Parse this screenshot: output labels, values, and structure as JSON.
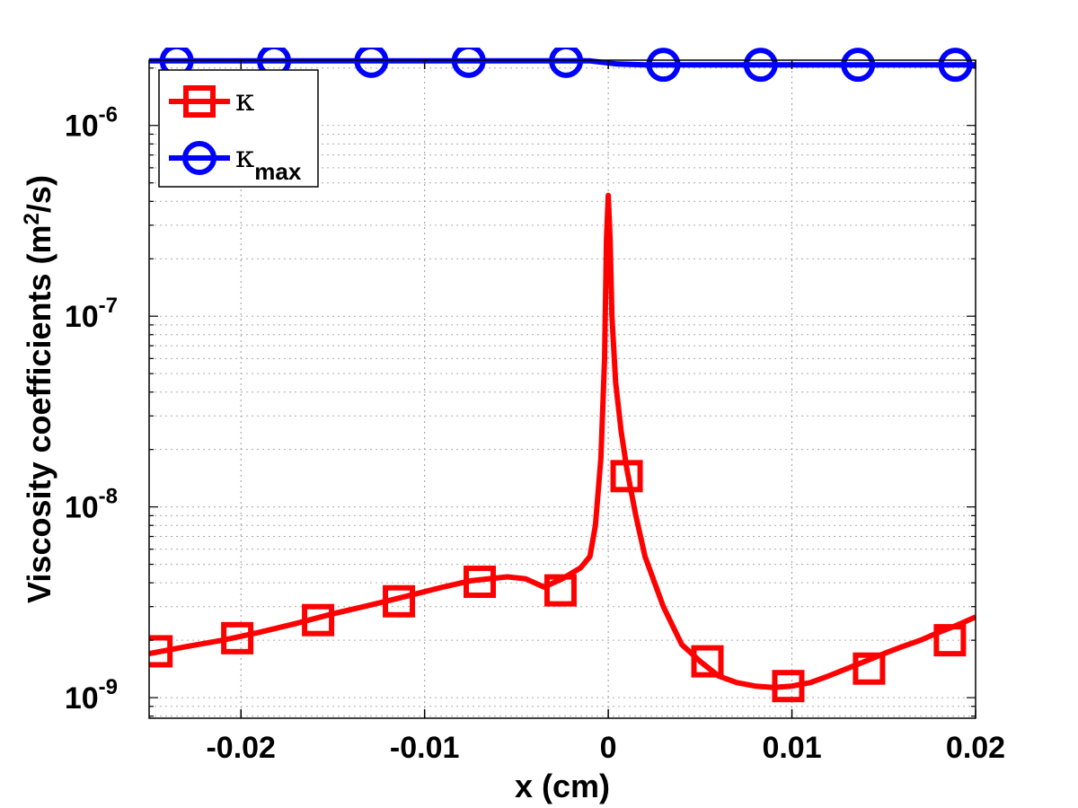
{
  "chart_data": {
    "type": "line",
    "title": "",
    "xlabel": "x (cm)",
    "ylabel": {
      "prefix": "Viscosity coefficients (m",
      "sup": "2",
      "suffix": "/s)"
    },
    "xlim": [
      -0.025,
      0.02
    ],
    "ylim": [
      7.8e-10,
      2.2e-06
    ],
    "yscale": "log",
    "grid": true,
    "legend_position": "top-left",
    "x_ticks": [
      {
        "value": -0.02,
        "label": "-0.02"
      },
      {
        "value": -0.01,
        "label": "-0.01"
      },
      {
        "value": 0,
        "label": "0"
      },
      {
        "value": 0.01,
        "label": "0.01"
      },
      {
        "value": 0.02,
        "label": "0.02"
      }
    ],
    "y_ticks": [
      {
        "value": 1e-09,
        "base": "10",
        "exp": "-9"
      },
      {
        "value": 1e-08,
        "base": "10",
        "exp": "-8"
      },
      {
        "value": 1e-07,
        "base": "10",
        "exp": "-7"
      },
      {
        "value": 1e-06,
        "base": "10",
        "exp": "-6"
      }
    ],
    "series": [
      {
        "name": "κ",
        "name_sub": "",
        "color": "#ff0000",
        "marker": "square",
        "x": [
          -0.025,
          -0.023,
          -0.021,
          -0.019,
          -0.017,
          -0.015,
          -0.013,
          -0.011,
          -0.009,
          -0.0075,
          -0.0055,
          -0.0045,
          -0.0035,
          -0.0025,
          -0.0015,
          -0.001,
          -0.0007,
          -0.0004,
          -0.0002,
          -0.0001,
          0,
          0.0001,
          0.0002,
          0.0004,
          0.0007,
          0.001,
          0.0015,
          0.002,
          0.003,
          0.004,
          0.005,
          0.006,
          0.007,
          0.008,
          0.009,
          0.01,
          0.011,
          0.012,
          0.013,
          0.014,
          0.015,
          0.016,
          0.017,
          0.018,
          0.019,
          0.02
        ],
        "y": [
          1.7e-09,
          1.85e-09,
          2e-09,
          2.2e-09,
          2.45e-09,
          2.75e-09,
          3.05e-09,
          3.4e-09,
          3.8e-09,
          4.1e-09,
          4.3e-09,
          4.2e-09,
          3.8e-09,
          4.2e-09,
          4.8e-09,
          5.5e-09,
          8e-09,
          1.8e-08,
          6e-08,
          2.5e-07,
          4.3e-07,
          2.5e-07,
          1e-07,
          4.5e-08,
          2.5e-08,
          1.6e-08,
          9e-09,
          5.5e-09,
          3e-09,
          1.9e-09,
          1.55e-09,
          1.3e-09,
          1.2e-09,
          1.15e-09,
          1.13e-09,
          1.15e-09,
          1.2e-09,
          1.3e-09,
          1.42e-09,
          1.55e-09,
          1.7e-09,
          1.85e-09,
          2e-09,
          2.2e-09,
          2.4e-09,
          2.65e-09
        ],
        "marker_x": [
          -0.0246,
          -0.0202,
          -0.0158,
          -0.0114,
          -0.007,
          -0.0026,
          0.001,
          0.0054,
          0.0098,
          0.0142,
          0.0186
        ],
        "marker_y": [
          1.75e-09,
          2.05e-09,
          2.55e-09,
          3.2e-09,
          4.05e-09,
          3.65e-09,
          1.45e-08,
          1.55e-09,
          1.15e-09,
          1.42e-09,
          2e-09
        ]
      },
      {
        "name": "κ",
        "name_sub": "max",
        "color": "#0000ff",
        "marker": "circle",
        "x": [
          -0.025,
          -0.003,
          -0.001,
          0.0005,
          0.002,
          0.02
        ],
        "y": [
          2.18e-06,
          2.18e-06,
          2.18e-06,
          2.1e-06,
          2.08e-06,
          2.08e-06
        ],
        "marker_x": [
          -0.0235,
          -0.0182,
          -0.0129,
          -0.0076,
          -0.0023,
          0.003,
          0.0083,
          0.0136,
          0.0189
        ],
        "marker_y": [
          2.18e-06,
          2.18e-06,
          2.18e-06,
          2.18e-06,
          2.18e-06,
          2.08e-06,
          2.08e-06,
          2.08e-06,
          2.08e-06
        ]
      }
    ]
  }
}
